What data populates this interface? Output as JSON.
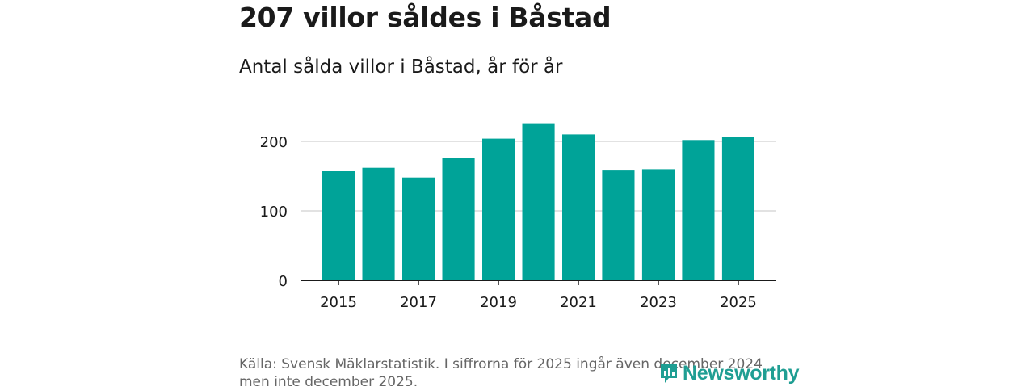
{
  "header": {
    "title": "207 villor såldes i Båstad",
    "subtitle": "Antal sålda villor i Båstad, år för år"
  },
  "chart_data": {
    "type": "bar",
    "categories": [
      "2015",
      "2016",
      "2017",
      "2018",
      "2019",
      "2020",
      "2021",
      "2022",
      "2023",
      "2024",
      "2025"
    ],
    "values": [
      157,
      162,
      148,
      176,
      204,
      226,
      210,
      158,
      160,
      202,
      207
    ],
    "x_tick_labels": [
      "2015",
      "2017",
      "2019",
      "2021",
      "2023",
      "2025"
    ],
    "y_ticks": [
      0,
      100,
      200
    ],
    "ylim": [
      0,
      200
    ],
    "xlabel": "",
    "ylabel": "",
    "grid": true,
    "bar_color": "#00a398",
    "grid_color": "#d9d9d9",
    "axis_color": "#1a1a1a"
  },
  "footer": {
    "source_line1": "Källa: Svensk Mäklarstatistik. I siffrorna för 2025 ingår även december 2024",
    "source_line2": "men inte december 2025."
  },
  "brand": {
    "name": "Newsworthy",
    "icon": "bar-chart-logo-icon",
    "color": "#1f9e93"
  }
}
